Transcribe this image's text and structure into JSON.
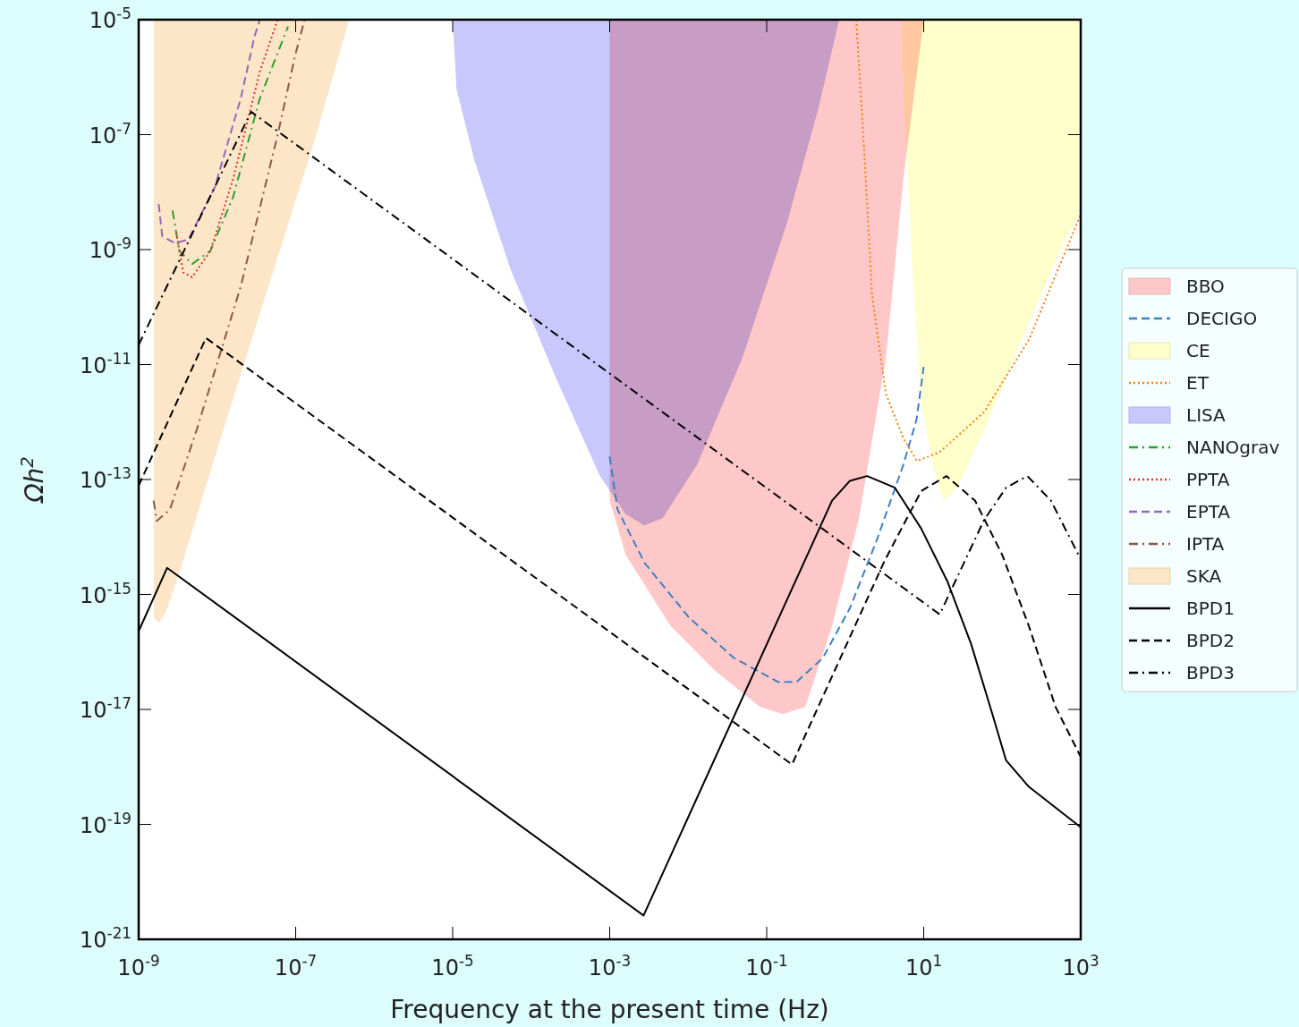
{
  "chart_data": {
    "type": "line",
    "xlabel": "Frequency at the present time (Hz)",
    "ylabel": "Ωh$^{2}$",
    "log": "xy",
    "grid": false,
    "legend": "right",
    "xlim": [
      1e-09,
      1000
    ],
    "ylim": [
      1e-21,
      1e-05
    ],
    "xticks": [
      {
        "value": 1e-09,
        "label": "10$^{-9}$"
      },
      {
        "value": 1e-07,
        "label": "10$^{-7}$"
      },
      {
        "value": 1e-05,
        "label": "10$^{-5}$"
      },
      {
        "value": 0.001,
        "label": "10$^{-3}$"
      },
      {
        "value": 0.1,
        "label": "10$^{-1}$"
      },
      {
        "value": 10,
        "label": "10$^{1}$"
      },
      {
        "value": 1000,
        "label": "10$^{3}$"
      }
    ],
    "yticks": [
      {
        "value": 1e-21,
        "label": "10$^{-21}$"
      },
      {
        "value": 1e-19,
        "label": "10$^{-19}$"
      },
      {
        "value": 1e-17,
        "label": "10$^{-17}$"
      },
      {
        "value": 1e-15,
        "label": "10$^{-15}$"
      },
      {
        "value": 1e-13,
        "label": "10$^{-13}$"
      },
      {
        "value": 1e-11,
        "label": "10$^{-11}$"
      },
      {
        "value": 1e-09,
        "label": "10$^{-9}$"
      },
      {
        "value": 1e-07,
        "label": "10$^{-7}$"
      },
      {
        "value": 1e-05,
        "label": "10$^{-5}$"
      }
    ],
    "series": [
      {
        "name": "BBO",
        "type": "area",
        "color": "#ffc8c8",
        "x": [
          0.001,
          0.001,
          0.0016,
          0.006,
          0.022,
          0.083,
          0.16,
          0.31,
          0.68,
          1.5,
          3.3,
          5.5,
          7.2,
          10
        ],
        "values": [
          1e-05,
          4.3e-14,
          4.9e-15,
          2.8e-16,
          4.7e-17,
          1.1e-17,
          8.3e-18,
          1.1e-17,
          2.8e-16,
          2.1e-14,
          1.3e-11,
          1.7e-08,
          null,
          1e-05
        ]
      },
      {
        "name": "DECIGO",
        "line_style": "dashed",
        "color": "#3b80c4",
        "x": [
          0.001,
          0.00126,
          0.0028,
          0.0102,
          0.038,
          0.14,
          0.24,
          0.52,
          1.15,
          2.5,
          5.5,
          8.1,
          10
        ],
        "values": [
          2.5e-13,
          3e-14,
          3.5e-15,
          4e-16,
          7.9e-17,
          3e-17,
          3e-17,
          7.9e-17,
          5.8e-16,
          8.5e-15,
          1.8e-13,
          1.1e-12,
          9.1e-12
        ]
      },
      {
        "name": "CE",
        "type": "area",
        "color": "#ffffcc",
        "x": [
          5.2,
          5.5,
          7.2,
          9.3,
          13.8,
          18,
          27,
          59,
          219,
          617,
          1000,
          1000
        ],
        "values": [
          1e-05,
          6.2e-07,
          4.7e-10,
          2.2e-12,
          1.2e-13,
          4.3e-14,
          7.2e-14,
          7.4e-13,
          5.5e-11,
          1.4e-09,
          4.8e-09,
          1e-05
        ]
      },
      {
        "name": "ET",
        "line_style": "dotted",
        "color": "#ff7f0e",
        "x": [
          1.38,
          1.7,
          2.2,
          3.3,
          5.5,
          8.2,
          16,
          59,
          219,
          1000
        ],
        "values": [
          1e-05,
          1e-07,
          1.6e-10,
          3.1e-12,
          5.2e-13,
          2.1e-13,
          3e-13,
          1.5e-12,
          2.7e-11,
          4.1e-09
        ]
      },
      {
        "name": "LISA",
        "type": "area",
        "color": "#c8c8fc",
        "x": [
          1e-05,
          1.12e-05,
          1.9e-05,
          5.4e-05,
          0.0002,
          0.00074,
          0.0016,
          0.00275,
          0.0047,
          0.013,
          0.049,
          0.18,
          0.46,
          0.84
        ],
        "values": [
          1e-05,
          6.2e-07,
          3.5e-08,
          4.7e-10,
          6.5e-12,
          1.2e-13,
          2.5e-14,
          1.6e-14,
          2.1e-14,
          1.8e-13,
          1.3e-11,
          2.8e-09,
          3e-07,
          1e-05
        ]
      },
      {
        "name": "NANOgrav",
        "line_style": "dashdot",
        "color": "#2ca02c",
        "x": [
          2.7e-09,
          3.3e-09,
          4.8e-09,
          8.2e-09,
          1.6e-08,
          3.5e-08,
          8e-08
        ],
        "values": [
          4.8e-09,
          9.5e-10,
          5.6e-10,
          9.5e-10,
          8.3e-09,
          4.3e-07,
          7.6e-06
        ]
      },
      {
        "name": "PPTA",
        "line_style": "dotted",
        "color": "#e8302e",
        "x": [
          3e-09,
          3.7e-09,
          4.8e-09,
          8.2e-09,
          1.6e-08,
          3.5e-08,
          5.9e-08
        ],
        "values": [
          2e-09,
          4e-10,
          3.3e-10,
          9.5e-10,
          1.7e-08,
          1.26e-06,
          1e-05
        ]
      },
      {
        "name": "EPTA",
        "line_style": "dashed",
        "color": "#9467bd",
        "x": [
          1.8e-09,
          2e-09,
          2.9e-09,
          4.3e-09,
          9.3e-09,
          2e-08,
          3e-08,
          3.5e-08
        ],
        "values": [
          6.2e-09,
          1.7e-09,
          1.3e-09,
          1.5e-09,
          1.2e-08,
          4.3e-07,
          5.2e-06,
          1e-05
        ]
      },
      {
        "name": "IPTA",
        "line_style": "dashdot",
        "color": "#8c564b",
        "x": [
          1.55e-09,
          1.7e-09,
          2.5e-09,
          5.5e-09,
          2e-08,
          5.9e-08,
          1e-07,
          1.3e-07
        ],
        "values": [
          4.3e-14,
          1.9e-14,
          3e-14,
          7.4e-13,
          2.3e-10,
          1e-07,
          2.6e-06,
          1e-05
        ]
      },
      {
        "name": "SKA",
        "type": "area",
        "color": "#fde6c8",
        "x": [
          1.56e-09,
          1.56e-09,
          1.8e-09,
          2.2e-09,
          3.3e-09,
          1.2e-08,
          4.5e-08,
          1.7e-07,
          4.8e-07
        ],
        "values": [
          1e-05,
          4e-16,
          3.2e-16,
          4.8e-16,
          2.4e-15,
          7.4e-13,
          2.3e-10,
          7.1e-08,
          1e-05
        ]
      },
      {
        "name": "BPD1",
        "line_style": "solid",
        "color": "#000000",
        "x": [
          1e-09,
          2.3e-09,
          0.0027,
          0.68,
          1.15,
          1.9,
          4.3,
          9.3,
          20,
          40,
          76,
          112,
          219,
          1000
        ],
        "values": [
          2.3e-16,
          2.9e-15,
          2.6e-21,
          4.3e-14,
          9.5e-14,
          1.15e-13,
          7.2e-14,
          1.4e-14,
          1.7e-15,
          1.4e-16,
          7.8e-18,
          1.3e-18,
          4.5e-19,
          8.9e-20
        ]
      },
      {
        "name": "BPD2",
        "line_style": "dashed",
        "color": "#000000",
        "x": [
          1e-09,
          7.2e-09,
          0.21,
          3.16,
          9.3,
          19.5,
          45,
          100,
          219,
          479,
          1000
        ],
        "values": [
          7.8e-14,
          2.9e-11,
          1.1e-18,
          3.8e-15,
          6.3e-14,
          1.15e-13,
          4.3e-14,
          4.9e-15,
          2.8e-16,
          1.1e-17,
          1.5e-18
        ]
      },
      {
        "name": "BPD3",
        "line_style": "dashdot",
        "color": "#000000",
        "x": [
          1e-09,
          2.7e-08,
          16,
          59,
          112,
          209,
          417,
          1000
        ],
        "values": [
          2.2e-11,
          2.5e-07,
          4.5e-16,
          2e-14,
          7.2e-14,
          1.15e-13,
          4.3e-14,
          4.1e-15
        ]
      }
    ]
  }
}
